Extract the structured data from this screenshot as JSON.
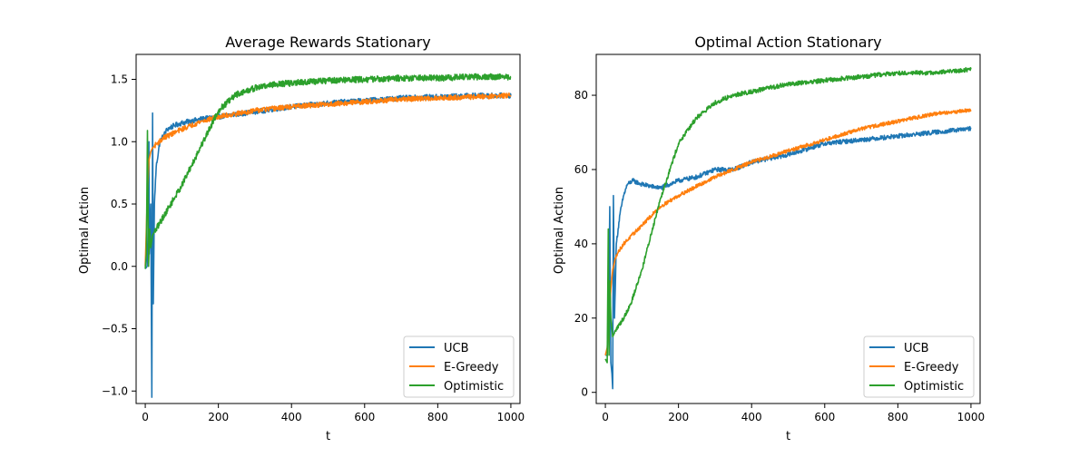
{
  "figure": {
    "background": "#ffffff"
  },
  "colors": {
    "ucb": "#1f77b4",
    "egreedy": "#ff7f0e",
    "optimistic": "#2ca02c"
  },
  "chart_data": [
    {
      "type": "line",
      "title": "Average Rewards Stationary",
      "xlabel": "t",
      "ylabel": "Optimal Action",
      "xlim": [
        -25,
        1025
      ],
      "ylim": [
        -1.1,
        1.7
      ],
      "xticks": [
        0,
        200,
        400,
        600,
        800,
        1000
      ],
      "yticks": [
        -1.0,
        -0.5,
        0.0,
        0.5,
        1.0,
        1.5
      ],
      "ytick_labels": [
        "−1.0",
        "−0.5",
        "0.0",
        "0.5",
        "1.0",
        "1.5"
      ],
      "legend": {
        "position": "lower-right",
        "entries": [
          "UCB",
          "E-Greedy",
          "Optimistic"
        ]
      },
      "grid": false,
      "series": [
        {
          "name": "UCB",
          "color": "#1f77b4",
          "noise": 0.02,
          "x": [
            0,
            5,
            8,
            10,
            11,
            15,
            18,
            20,
            22,
            25,
            30,
            40,
            50,
            60,
            80,
            100,
            150,
            200,
            250,
            300,
            400,
            500,
            600,
            700,
            800,
            900,
            1000
          ],
          "y": [
            -0.02,
            0.0,
            0.3,
            1.0,
            0.1,
            0.5,
            -1.05,
            1.23,
            -0.3,
            0.5,
            0.8,
            1.0,
            1.05,
            1.1,
            1.13,
            1.15,
            1.18,
            1.2,
            1.22,
            1.24,
            1.28,
            1.31,
            1.33,
            1.35,
            1.36,
            1.37,
            1.37
          ]
        },
        {
          "name": "E-Greedy",
          "color": "#ff7f0e",
          "noise": 0.02,
          "x": [
            0,
            5,
            10,
            15,
            20,
            30,
            50,
            100,
            150,
            200,
            300,
            400,
            500,
            600,
            700,
            800,
            900,
            1000
          ],
          "y": [
            0.0,
            0.5,
            0.85,
            0.92,
            0.95,
            0.98,
            1.03,
            1.1,
            1.16,
            1.2,
            1.25,
            1.28,
            1.3,
            1.32,
            1.34,
            1.35,
            1.36,
            1.37
          ]
        },
        {
          "name": "Optimistic",
          "color": "#2ca02c",
          "noise": 0.025,
          "x": [
            0,
            3,
            6,
            9,
            12,
            15,
            20,
            30,
            50,
            100,
            150,
            200,
            250,
            300,
            350,
            400,
            500,
            600,
            700,
            800,
            900,
            1000
          ],
          "y": [
            -0.02,
            0.1,
            1.09,
            0.0,
            0.3,
            0.15,
            0.25,
            0.3,
            0.4,
            0.65,
            0.95,
            1.25,
            1.38,
            1.43,
            1.46,
            1.47,
            1.49,
            1.5,
            1.51,
            1.51,
            1.52,
            1.52
          ]
        }
      ]
    },
    {
      "type": "line",
      "title": "Optimal Action Stationary",
      "xlabel": "t",
      "ylabel": "Optimal Action",
      "xlim": [
        -25,
        1025
      ],
      "ylim": [
        -3,
        91
      ],
      "xticks": [
        0,
        200,
        400,
        600,
        800,
        1000
      ],
      "yticks": [
        0,
        20,
        40,
        60,
        80
      ],
      "ytick_labels": [
        "0",
        "20",
        "40",
        "60",
        "80"
      ],
      "legend": {
        "position": "lower-right",
        "entries": [
          "UCB",
          "E-Greedy",
          "Optimistic"
        ]
      },
      "grid": false,
      "series": [
        {
          "name": "UCB",
          "color": "#1f77b4",
          "noise": 0.6,
          "x": [
            0,
            5,
            10,
            12,
            15,
            18,
            20,
            22,
            25,
            30,
            40,
            50,
            60,
            75,
            100,
            150,
            200,
            250,
            300,
            350,
            400,
            500,
            600,
            700,
            800,
            900,
            1000
          ],
          "y": [
            10,
            10,
            30,
            50,
            8,
            5,
            1,
            53,
            20,
            40,
            48,
            53,
            56,
            57,
            56,
            55,
            57,
            58,
            60,
            60,
            62,
            64,
            67,
            68,
            69,
            70,
            71
          ]
        },
        {
          "name": "E-Greedy",
          "color": "#ff7f0e",
          "noise": 0.5,
          "x": [
            0,
            5,
            10,
            15,
            20,
            30,
            50,
            100,
            150,
            200,
            300,
            400,
            500,
            600,
            700,
            800,
            900,
            1000
          ],
          "y": [
            10,
            12,
            20,
            28,
            33,
            37,
            40,
            45,
            50,
            53,
            58,
            62,
            65,
            68,
            71,
            73,
            75,
            76
          ]
        },
        {
          "name": "Optimistic",
          "color": "#2ca02c",
          "noise": 0.6,
          "x": [
            0,
            5,
            8,
            10,
            12,
            15,
            20,
            30,
            50,
            70,
            100,
            150,
            200,
            250,
            300,
            350,
            400,
            500,
            600,
            700,
            800,
            900,
            1000
          ],
          "y": [
            9,
            8,
            44,
            10,
            30,
            20,
            15,
            17,
            20,
            24,
            33,
            52,
            67,
            74,
            78,
            80,
            81,
            83,
            84,
            85,
            86,
            86,
            87
          ]
        }
      ]
    }
  ]
}
